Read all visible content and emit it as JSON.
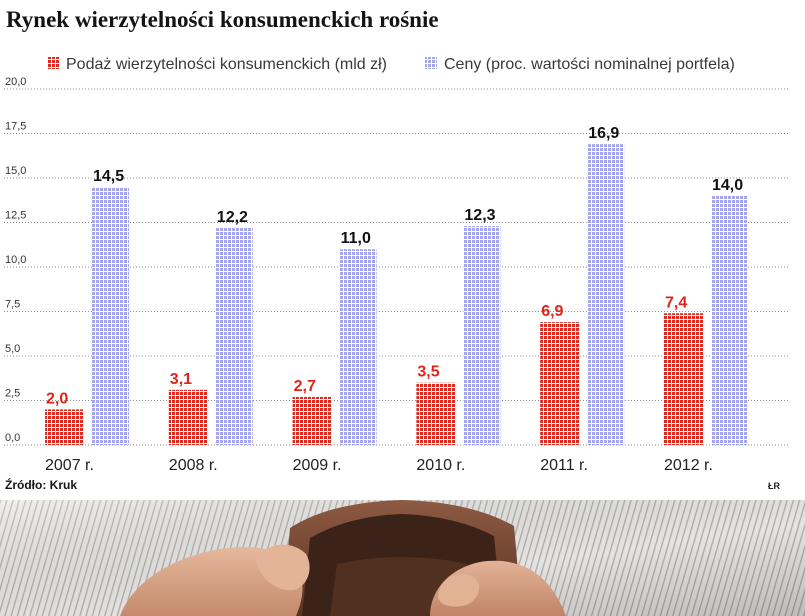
{
  "chart_data": {
    "type": "bar",
    "title": "Rynek wierzytelności konsumenckich rośnie",
    "categories": [
      "2007 r.",
      "2008 r.",
      "2009 r.",
      "2010 r.",
      "2011 r.",
      "2012 r."
    ],
    "series": [
      {
        "name": "Podaż wierzytelności konsumenckich (mld zł)",
        "values": [
          2.0,
          3.1,
          2.7,
          3.5,
          6.9,
          7.4
        ],
        "value_labels": [
          "2,0",
          "3,1",
          "2,7",
          "3,5",
          "6,9",
          "7,4"
        ],
        "color": "#d92b22",
        "label_color": "#e2231a"
      },
      {
        "name": "Ceny (proc. wartości nominalnej portfela)",
        "values": [
          14.5,
          12.2,
          11.0,
          12.3,
          16.9,
          14.0
        ],
        "value_labels": [
          "14,5",
          "12,2",
          "11,0",
          "12,3",
          "16,9",
          "14,0"
        ],
        "color": "#a6a6ec",
        "label_color": "#111111"
      }
    ],
    "ylim": [
      0,
      20
    ],
    "yticks": [
      {
        "value": 0,
        "label": "0,0"
      },
      {
        "value": 2.5,
        "label": "2,5"
      },
      {
        "value": 5,
        "label": "5,0"
      },
      {
        "value": 7.5,
        "label": "7,5"
      },
      {
        "value": 10,
        "label": "10,0"
      },
      {
        "value": 12.5,
        "label": "12,5"
      },
      {
        "value": 15,
        "label": "15,0"
      },
      {
        "value": 17.5,
        "label": "17,5"
      },
      {
        "value": 20,
        "label": "20,0"
      }
    ],
    "grid": true,
    "legend": "top-left",
    "source": "Źródło: Kruk"
  },
  "credit": "ŁR"
}
